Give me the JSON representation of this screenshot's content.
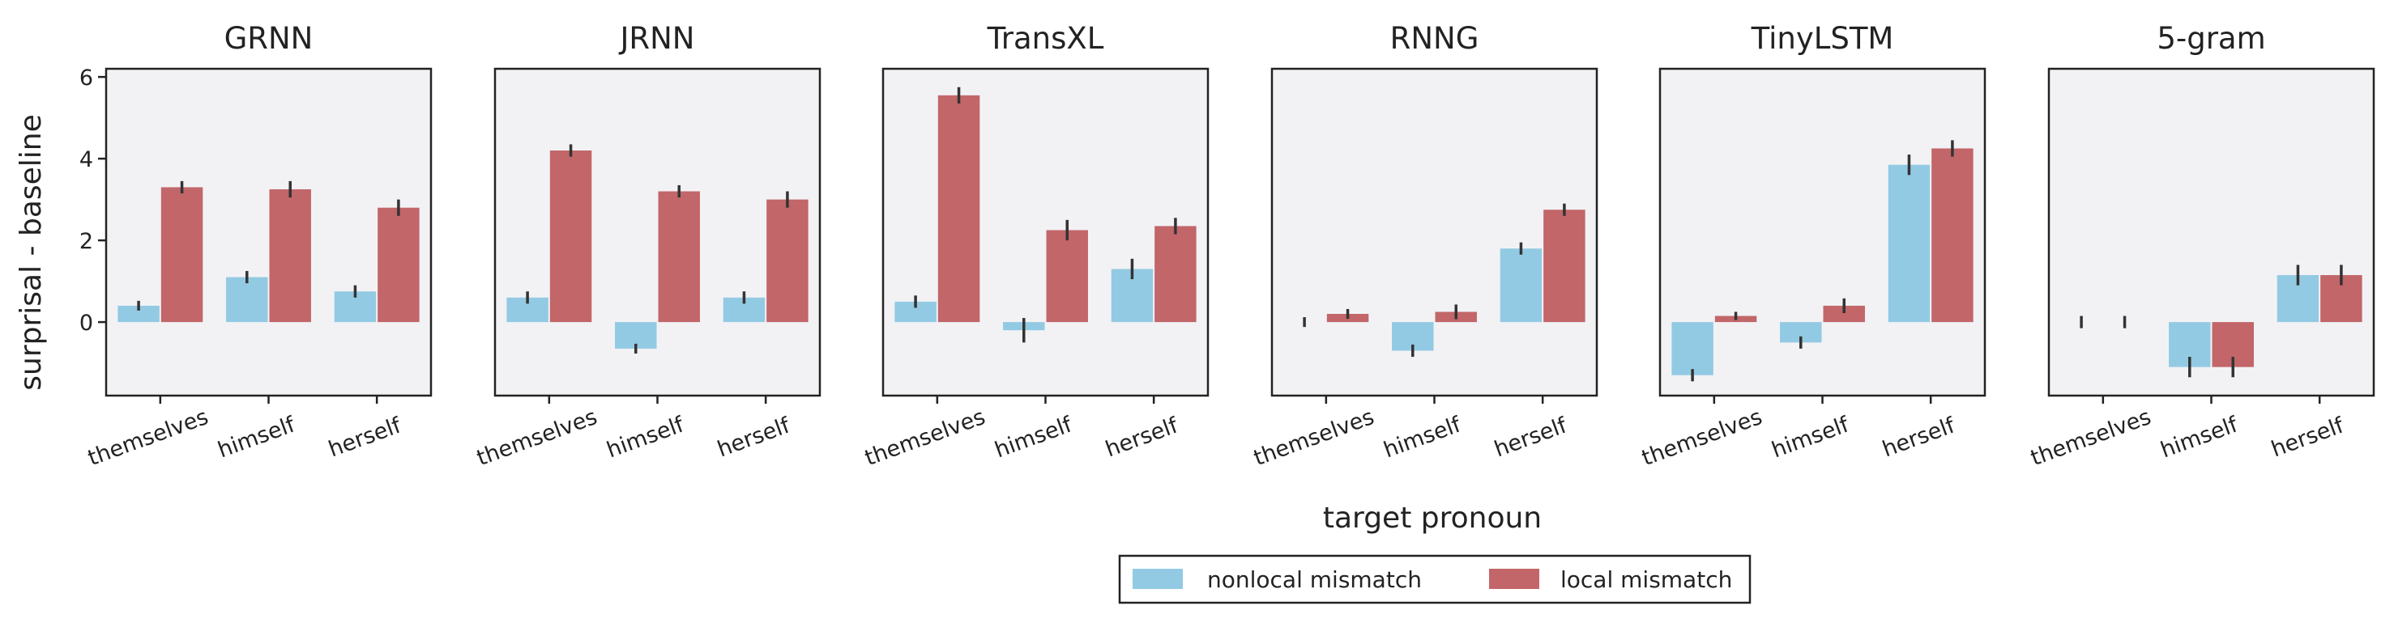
{
  "chart_data": {
    "type": "bar",
    "xlabel": "target pronoun",
    "ylabel": "surprisal - baseline",
    "ylim": [
      -1.8,
      6.2
    ],
    "yticks": [
      0,
      2,
      4,
      6
    ],
    "categories": [
      "themselves",
      "himself",
      "herself"
    ],
    "legend": {
      "placement": "bottom-center",
      "entries": [
        {
          "name": "nonlocal mismatch",
          "color": "#93cae3"
        },
        {
          "name": "local mismatch",
          "color": "#c26669"
        }
      ]
    },
    "panels": [
      {
        "title": "GRNN",
        "series": [
          {
            "name": "nonlocal mismatch",
            "values": [
              0.4,
              1.1,
              0.75
            ],
            "err": [
              0.12,
              0.15,
              0.15
            ]
          },
          {
            "name": "local mismatch",
            "values": [
              3.3,
              3.25,
              2.8
            ],
            "err": [
              0.15,
              0.2,
              0.2
            ]
          }
        ]
      },
      {
        "title": "JRNN",
        "series": [
          {
            "name": "nonlocal mismatch",
            "values": [
              0.6,
              -0.65,
              0.6
            ],
            "err": [
              0.15,
              0.12,
              0.15
            ]
          },
          {
            "name": "local mismatch",
            "values": [
              4.2,
              3.2,
              3.0
            ],
            "err": [
              0.15,
              0.15,
              0.2
            ]
          }
        ]
      },
      {
        "title": "TransXL",
        "series": [
          {
            "name": "nonlocal mismatch",
            "values": [
              0.5,
              -0.2,
              1.3
            ],
            "err": [
              0.15,
              0.3,
              0.25
            ]
          },
          {
            "name": "local mismatch",
            "values": [
              5.55,
              2.25,
              2.35
            ],
            "err": [
              0.2,
              0.25,
              0.2
            ]
          }
        ]
      },
      {
        "title": "RNNG",
        "series": [
          {
            "name": "nonlocal mismatch",
            "values": [
              0.0,
              -0.7,
              1.8
            ],
            "err": [
              0.12,
              0.15,
              0.15
            ]
          },
          {
            "name": "local mismatch",
            "values": [
              0.2,
              0.25,
              2.75
            ],
            "err": [
              0.12,
              0.18,
              0.15
            ]
          }
        ]
      },
      {
        "title": "TinyLSTM",
        "series": [
          {
            "name": "nonlocal mismatch",
            "values": [
              -1.3,
              -0.5,
              3.85
            ],
            "err": [
              0.15,
              0.15,
              0.25
            ]
          },
          {
            "name": "local mismatch",
            "values": [
              0.15,
              0.4,
              4.25
            ],
            "err": [
              0.1,
              0.18,
              0.2
            ]
          }
        ]
      },
      {
        "title": "5-gram",
        "series": [
          {
            "name": "nonlocal mismatch",
            "values": [
              0.0,
              -1.1,
              1.15
            ],
            "err": [
              0.15,
              0.25,
              0.25
            ]
          },
          {
            "name": "local mismatch",
            "values": [
              0.0,
              -1.1,
              1.15
            ],
            "err": [
              0.15,
              0.25,
              0.25
            ]
          }
        ]
      }
    ]
  }
}
